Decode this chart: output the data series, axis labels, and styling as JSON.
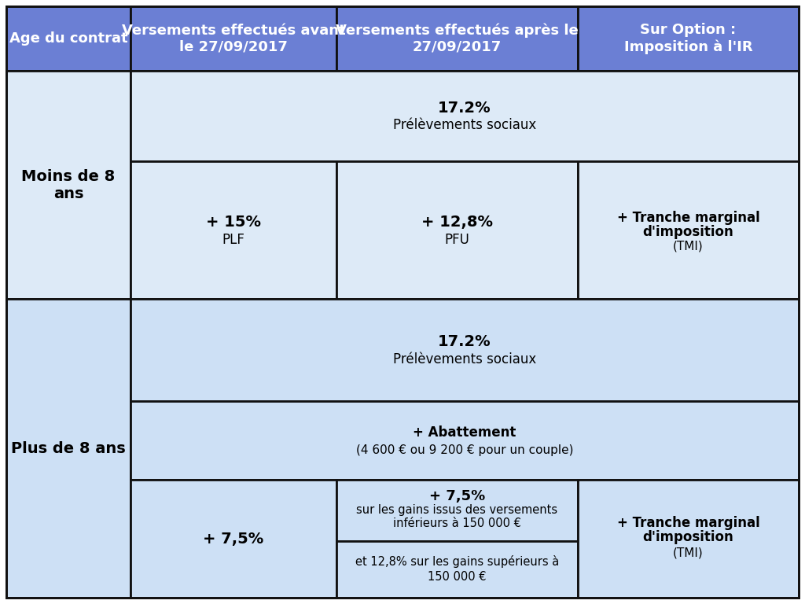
{
  "bg_color": "#ffffff",
  "header_bg": "#6B7FD4",
  "header_text_color": "#ffffff",
  "cell_bg_row1": "#ddeaf7",
  "cell_bg_row2": "#cde0f5",
  "border_color": "#111111",
  "fig_width": 10.24,
  "fig_height": 7.68,
  "header_row": [
    "Age du contrat",
    "Versements effectués avant\nle 27/09/2017",
    "Versements effectués après le\n27/09/2017",
    "Sur Option :\nImposition à l'IR"
  ],
  "row1_label": "Moins de 8\nans",
  "row2_label": "Plus de 8 ans"
}
